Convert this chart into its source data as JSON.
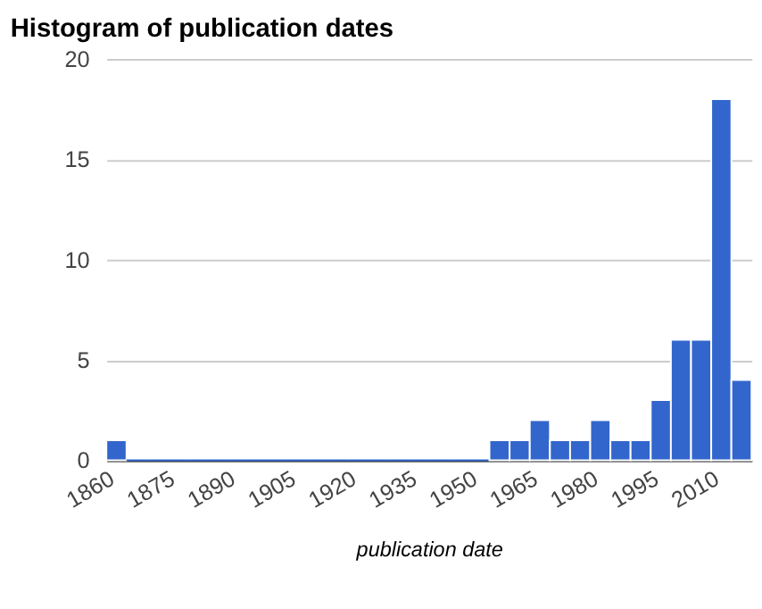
{
  "chart_data": {
    "type": "histogram",
    "title": "Histogram of publication dates",
    "xlabel": "publication date",
    "bins": [
      1860,
      1865,
      1870,
      1875,
      1880,
      1885,
      1890,
      1895,
      1900,
      1905,
      1910,
      1915,
      1920,
      1925,
      1930,
      1935,
      1940,
      1945,
      1950,
      1955,
      1960,
      1965,
      1970,
      1975,
      1980,
      1985,
      1990,
      1995,
      2000,
      2005,
      2010,
      2015,
      2020
    ],
    "values": [
      1,
      0,
      0,
      0,
      0,
      0,
      0,
      0,
      0,
      0,
      0,
      0,
      0,
      0,
      0,
      0,
      0,
      0,
      0,
      1,
      1,
      2,
      1,
      1,
      2,
      1,
      1,
      3,
      6,
      6,
      18,
      4
    ],
    "color": "#3366cc",
    "xlim": [
      1860,
      2020
    ],
    "xticks": [
      1860,
      1875,
      1890,
      1905,
      1920,
      1935,
      1950,
      1965,
      1980,
      1995,
      2010
    ],
    "ylim": [
      0,
      20
    ],
    "yticks": [
      0,
      5,
      10,
      15,
      20
    ],
    "grid": "y"
  }
}
